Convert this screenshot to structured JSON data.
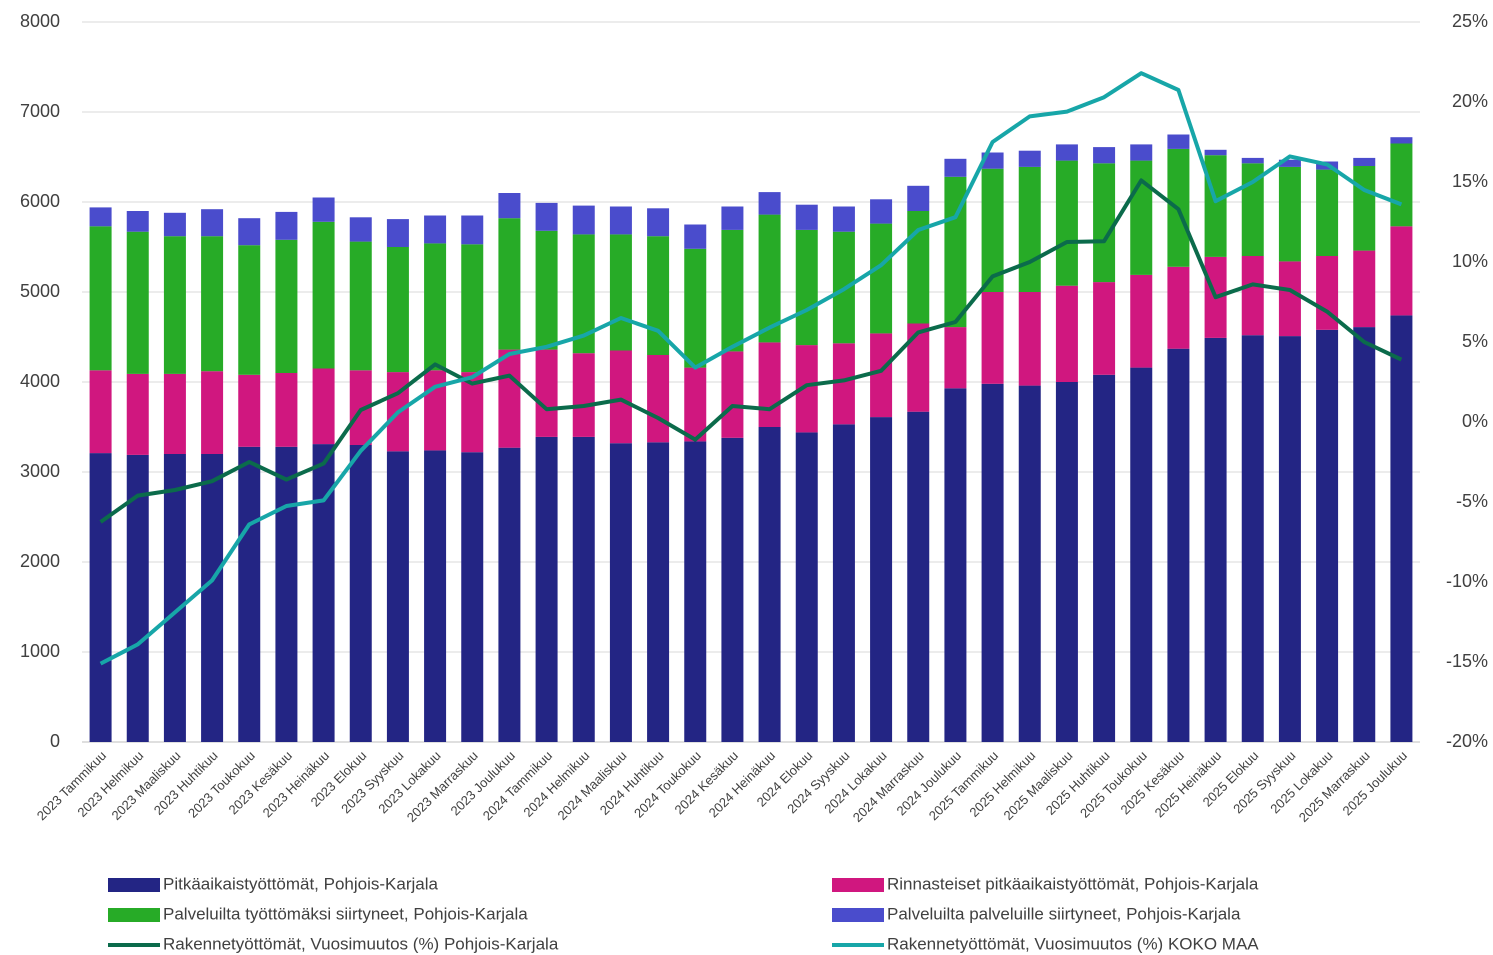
{
  "chart_data": {
    "type": "stacked_bar_line",
    "categories": [
      "2023 Tammikuu",
      "2023 Helmikuu",
      "2023 Maaliskuu",
      "2023 Huhtikuu",
      "2023 Toukokuu",
      "2023 Kesäkuu",
      "2023 Heinäkuu",
      "2023 Elokuu",
      "2023 Syyskuu",
      "2023 Lokakuu",
      "2023 Marraskuu",
      "2023 Joulukuu",
      "2024 Tammikuu",
      "2024 Helmikuu",
      "2024 Maaliskuu",
      "2024 Huhtikuu",
      "2024 Toukokuu",
      "2024 Kesäkuu",
      "2024 Heinäkuu",
      "2024 Elokuu",
      "2024 Syyskuu",
      "2024 Lokakuu",
      "2024 Marraskuu",
      "2024 Joulukuu",
      "2025 Tammikuu",
      "2025 Helmikuu",
      "2025 Maaliskuu",
      "2025 Huhtikuu",
      "2025 Toukokuu",
      "2025 Kesäkuu",
      "2025 Heinäkuu",
      "2025 Elokuu",
      "2025 Syyskuu",
      "2025 Lokakuu",
      "2025 Marraskuu",
      "2025 Joulukuu"
    ],
    "series": [
      {
        "name": "Pitkäaikaistyöttömät, Pohjois-Karjala",
        "color": "#232584",
        "kind": "bar",
        "values": [
          3210,
          3190,
          3200,
          3200,
          3280,
          3280,
          3310,
          3300,
          3230,
          3240,
          3220,
          3270,
          3390,
          3390,
          3320,
          3330,
          3340,
          3380,
          3500,
          3440,
          3530,
          3610,
          3670,
          3930,
          3980,
          3960,
          4000,
          4080,
          4160,
          4370,
          4490,
          4520,
          4510,
          4580,
          4610,
          4740
        ]
      },
      {
        "name": "Rinnasteiset pitkäaikaistyöttömät, Pohjois-Karjala",
        "color": "#d0177f",
        "kind": "bar",
        "values": [
          920,
          900,
          890,
          920,
          800,
          820,
          840,
          830,
          880,
          890,
          890,
          1090,
          970,
          930,
          1030,
          970,
          820,
          960,
          940,
          970,
          900,
          930,
          980,
          680,
          1020,
          1040,
          1070,
          1030,
          1030,
          910,
          900,
          880,
          830,
          820,
          850,
          990
        ]
      },
      {
        "name": "Palveluilta työttömäksi siirtyneet, Pohjois-Karjala",
        "color": "#27ab27",
        "kind": "bar",
        "values": [
          1600,
          1580,
          1530,
          1500,
          1440,
          1480,
          1630,
          1430,
          1390,
          1410,
          1420,
          1460,
          1320,
          1320,
          1290,
          1320,
          1320,
          1350,
          1420,
          1280,
          1240,
          1220,
          1250,
          1670,
          1370,
          1390,
          1390,
          1320,
          1270,
          1310,
          1130,
          1030,
          1050,
          960,
          940,
          920
        ]
      },
      {
        "name": "Palveluilta palveluille siirtyneet, Pohjois-Karjala",
        "color": "#4a4ccc",
        "kind": "bar",
        "values": [
          210,
          230,
          260,
          300,
          300,
          310,
          270,
          270,
          310,
          310,
          320,
          280,
          310,
          320,
          310,
          310,
          270,
          260,
          250,
          280,
          280,
          270,
          280,
          200,
          180,
          180,
          180,
          180,
          180,
          160,
          60,
          60,
          80,
          90,
          90,
          70
        ]
      },
      {
        "name": "Rakennetyöttömät, Vuosimuutos (%) Pohjois-Karjala",
        "color": "#0b6b4b",
        "kind": "line",
        "axis": "y2",
        "values": [
          -6.25,
          -4.6,
          -4.25,
          -3.7,
          -2.5,
          -3.6,
          -2.6,
          0.75,
          1.8,
          3.6,
          2.4,
          2.9,
          0.8,
          1.0,
          1.4,
          0.25,
          -1.1,
          1.0,
          0.8,
          2.3,
          2.6,
          3.2,
          5.6,
          6.25,
          9.1,
          10.0,
          11.25,
          11.3,
          15.1,
          13.3,
          7.8,
          8.6,
          8.25,
          6.9,
          5.0,
          3.9
        ]
      },
      {
        "name": "Rakennetyöttömät, Vuosimuutos (%)  KOKO MAA",
        "color": "#17a6a8",
        "kind": "line",
        "axis": "y2",
        "values": [
          -15.1,
          -13.9,
          -11.9,
          -9.9,
          -6.4,
          -5.25,
          -4.9,
          -1.8,
          0.6,
          2.2,
          2.8,
          4.25,
          4.7,
          5.4,
          6.5,
          5.7,
          3.4,
          4.7,
          5.9,
          7.0,
          8.3,
          9.8,
          12.0,
          12.8,
          17.5,
          19.1,
          19.4,
          20.3,
          21.8,
          20.75,
          13.8,
          15.0,
          16.6,
          16.1,
          14.5,
          13.6
        ]
      }
    ],
    "ylim": [
      0,
      8000
    ],
    "yticks": [
      0,
      1000,
      2000,
      3000,
      4000,
      5000,
      6000,
      7000,
      8000
    ],
    "y2lim": [
      -20,
      25
    ],
    "y2ticks": [
      {
        "value": -20,
        "label": "-20%"
      },
      {
        "value": -15,
        "label": "-15%"
      },
      {
        "value": -10,
        "label": "-10%"
      },
      {
        "value": -5,
        "label": "-5%"
      },
      {
        "value": 0,
        "label": "0%"
      },
      {
        "value": 5,
        "label": "5%"
      },
      {
        "value": 10,
        "label": "10%"
      },
      {
        "value": 15,
        "label": "15%"
      },
      {
        "value": 20,
        "label": "20%"
      },
      {
        "value": 25,
        "label": "25%"
      }
    ],
    "grid": true,
    "legend": "bottom"
  }
}
